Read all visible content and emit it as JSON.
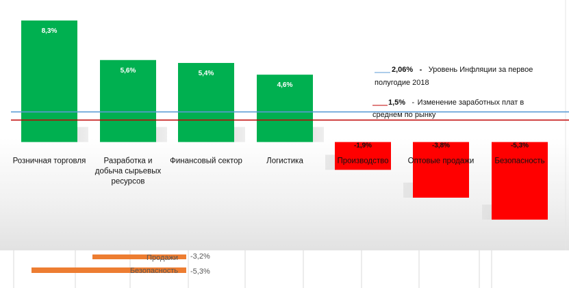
{
  "chart_data": {
    "type": "bar",
    "categories": [
      "Розничная торговля",
      "Разработка и добыча сырьевых ресурсов",
      "Финансовый сектор",
      "Логистика",
      "Производство",
      "Оптовые продажи",
      "Безопасность"
    ],
    "category_lines": [
      [
        "Розничная торговля"
      ],
      [
        "Разработка и",
        "добыча сырьевых",
        "ресурсов"
      ],
      [
        "Финансовый сектор"
      ],
      [
        "Логистика"
      ],
      [
        "Производство"
      ],
      [
        "Оптовые продажи"
      ],
      [
        "Безопасность"
      ]
    ],
    "values": [
      8.3,
      5.6,
      5.4,
      4.6,
      -1.9,
      -3.8,
      -5.3
    ],
    "data_labels": [
      "8,3%",
      "5,6%",
      "5,4%",
      "4,6%",
      "-1,9%",
      "-3,8%",
      "-5,3%"
    ],
    "colors": {
      "positive": "#00b050",
      "negative": "#ff0000",
      "inflation_line": "#5b9bd5",
      "wage_line": "#c00000"
    },
    "reference_lines": [
      {
        "value": 2.06,
        "color": "#5b9bd5"
      },
      {
        "value": 1.5,
        "color": "#c00000"
      }
    ],
    "legend": [
      {
        "value_label": "2,06%",
        "dash": "-",
        "text_line1": "Уровень  Инфляции за первое",
        "text_line2": "полугодие 2018"
      },
      {
        "value_label": "1,5%",
        "dash": "-",
        "text_line1": " Изменение  заработных плат в",
        "text_line2": "среднем  по рынку"
      }
    ],
    "background_chart": {
      "labels": [
        "Продажи",
        "Безопасность"
      ],
      "values_label": [
        "-3,2%",
        "-5,3%"
      ],
      "values": [
        -3.2,
        -5.3
      ]
    },
    "ylim": [
      -7.4,
      9.7
    ]
  }
}
